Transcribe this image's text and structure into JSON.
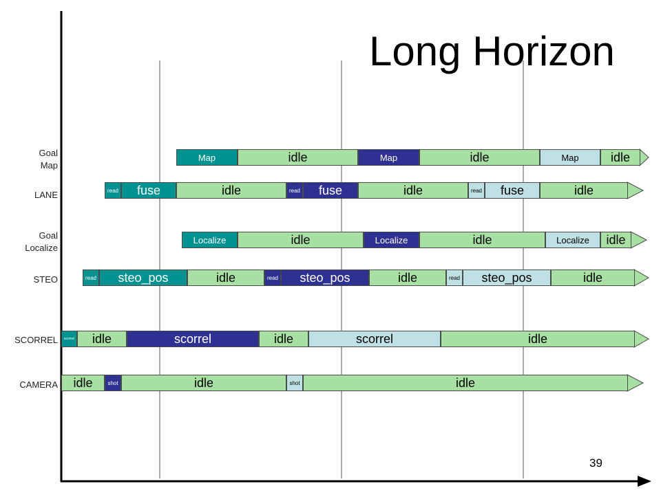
{
  "title": "Long Horizon",
  "page_number": "39",
  "colors": {
    "idle": "#a8e0a4",
    "teal": "#009191",
    "navy": "#2e3191",
    "pale": "#bfe0e4",
    "axis": "#000000",
    "marker": "#555555"
  },
  "lanes": [
    {
      "label": [
        "Goal",
        "Map"
      ],
      "segments": [
        {
          "text": "Map",
          "color": "teal"
        },
        {
          "text": "idle",
          "color": "idle"
        },
        {
          "text": "Map",
          "color": "navy"
        },
        {
          "text": "idle",
          "color": "idle"
        },
        {
          "text": "Map",
          "color": "pale"
        },
        {
          "text": "idle",
          "color": "idle"
        }
      ]
    },
    {
      "label": [
        "LANE"
      ],
      "segments": [
        {
          "text": "read",
          "color": "teal"
        },
        {
          "text": "fuse",
          "color": "teal"
        },
        {
          "text": "idle",
          "color": "idle"
        },
        {
          "text": "read",
          "color": "navy"
        },
        {
          "text": "fuse",
          "color": "navy"
        },
        {
          "text": "idle",
          "color": "idle"
        },
        {
          "text": "read",
          "color": "pale"
        },
        {
          "text": "fuse",
          "color": "pale"
        },
        {
          "text": "idle",
          "color": "idle"
        }
      ]
    },
    {
      "label": [
        "Goal",
        "Localize"
      ],
      "segments": [
        {
          "text": "Localize",
          "color": "teal"
        },
        {
          "text": "idle",
          "color": "idle"
        },
        {
          "text": "Localize",
          "color": "navy"
        },
        {
          "text": "idle",
          "color": "idle"
        },
        {
          "text": "Localize",
          "color": "pale"
        },
        {
          "text": "idle",
          "color": "idle"
        }
      ]
    },
    {
      "label": [
        "STEO"
      ],
      "segments": [
        {
          "text": "read",
          "color": "teal"
        },
        {
          "text": "steo_pos",
          "color": "teal"
        },
        {
          "text": "idle",
          "color": "idle"
        },
        {
          "text": "read",
          "color": "navy"
        },
        {
          "text": "steo_pos",
          "color": "navy"
        },
        {
          "text": "idle",
          "color": "idle"
        },
        {
          "text": "read",
          "color": "pale"
        },
        {
          "text": "steo_pos",
          "color": "pale"
        },
        {
          "text": "idle",
          "color": "idle"
        }
      ]
    },
    {
      "label": [
        "SCORREL"
      ],
      "segments": [
        {
          "text": "scorrel",
          "color": "teal"
        },
        {
          "text": "idle",
          "color": "idle"
        },
        {
          "text": "scorrel",
          "color": "navy"
        },
        {
          "text": "idle",
          "color": "idle"
        },
        {
          "text": "scorrel",
          "color": "pale"
        },
        {
          "text": "idle",
          "color": "idle"
        }
      ]
    },
    {
      "label": [
        "CAMERA"
      ],
      "segments": [
        {
          "text": "idle",
          "color": "idle"
        },
        {
          "text": "shot",
          "color": "navy"
        },
        {
          "text": "idle",
          "color": "idle"
        },
        {
          "text": "shot",
          "color": "pale"
        },
        {
          "text": "idle",
          "color": "idle"
        }
      ]
    }
  ]
}
